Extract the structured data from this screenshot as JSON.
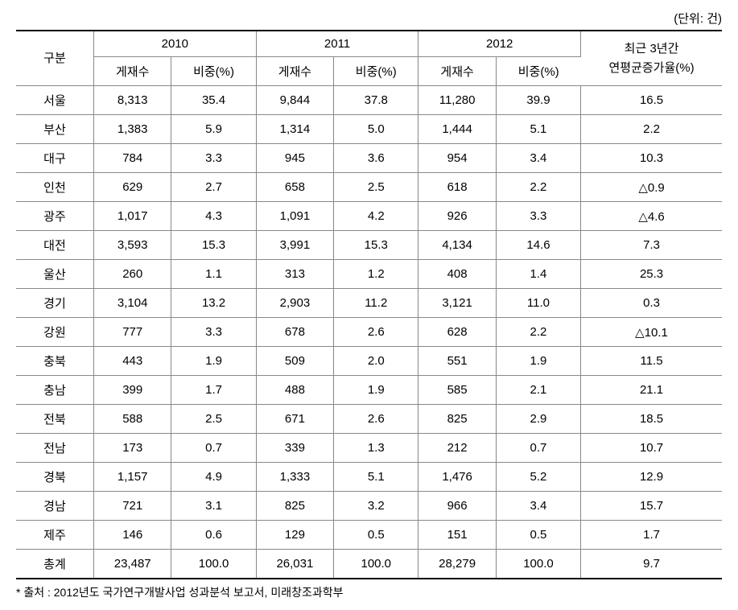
{
  "unit_label": "(단위: 건)",
  "header": {
    "category": "구분",
    "years": [
      "2010",
      "2011",
      "2012"
    ],
    "count": "게재수",
    "ratio": "비중(%)",
    "growth_top": "최근 3년간",
    "growth_bottom": "연평균증가율(%)"
  },
  "rows": [
    {
      "region": "서울",
      "y2010_cnt": "8,313",
      "y2010_pct": "35.4",
      "y2011_cnt": "9,844",
      "y2011_pct": "37.8",
      "y2012_cnt": "11,280",
      "y2012_pct": "39.9",
      "growth": "16.5"
    },
    {
      "region": "부산",
      "y2010_cnt": "1,383",
      "y2010_pct": "5.9",
      "y2011_cnt": "1,314",
      "y2011_pct": "5.0",
      "y2012_cnt": "1,444",
      "y2012_pct": "5.1",
      "growth": "2.2"
    },
    {
      "region": "대구",
      "y2010_cnt": "784",
      "y2010_pct": "3.3",
      "y2011_cnt": "945",
      "y2011_pct": "3.6",
      "y2012_cnt": "954",
      "y2012_pct": "3.4",
      "growth": "10.3"
    },
    {
      "region": "인천",
      "y2010_cnt": "629",
      "y2010_pct": "2.7",
      "y2011_cnt": "658",
      "y2011_pct": "2.5",
      "y2012_cnt": "618",
      "y2012_pct": "2.2",
      "growth": "△0.9"
    },
    {
      "region": "광주",
      "y2010_cnt": "1,017",
      "y2010_pct": "4.3",
      "y2011_cnt": "1,091",
      "y2011_pct": "4.2",
      "y2012_cnt": "926",
      "y2012_pct": "3.3",
      "growth": "△4.6"
    },
    {
      "region": "대전",
      "y2010_cnt": "3,593",
      "y2010_pct": "15.3",
      "y2011_cnt": "3,991",
      "y2011_pct": "15.3",
      "y2012_cnt": "4,134",
      "y2012_pct": "14.6",
      "growth": "7.3"
    },
    {
      "region": "울산",
      "y2010_cnt": "260",
      "y2010_pct": "1.1",
      "y2011_cnt": "313",
      "y2011_pct": "1.2",
      "y2012_cnt": "408",
      "y2012_pct": "1.4",
      "growth": "25.3"
    },
    {
      "region": "경기",
      "y2010_cnt": "3,104",
      "y2010_pct": "13.2",
      "y2011_cnt": "2,903",
      "y2011_pct": "11.2",
      "y2012_cnt": "3,121",
      "y2012_pct": "11.0",
      "growth": "0.3"
    },
    {
      "region": "강원",
      "y2010_cnt": "777",
      "y2010_pct": "3.3",
      "y2011_cnt": "678",
      "y2011_pct": "2.6",
      "y2012_cnt": "628",
      "y2012_pct": "2.2",
      "growth": "△10.1"
    },
    {
      "region": "충북",
      "y2010_cnt": "443",
      "y2010_pct": "1.9",
      "y2011_cnt": "509",
      "y2011_pct": "2.0",
      "y2012_cnt": "551",
      "y2012_pct": "1.9",
      "growth": "11.5"
    },
    {
      "region": "충남",
      "y2010_cnt": "399",
      "y2010_pct": "1.7",
      "y2011_cnt": "488",
      "y2011_pct": "1.9",
      "y2012_cnt": "585",
      "y2012_pct": "2.1",
      "growth": "21.1"
    },
    {
      "region": "전북",
      "y2010_cnt": "588",
      "y2010_pct": "2.5",
      "y2011_cnt": "671",
      "y2011_pct": "2.6",
      "y2012_cnt": "825",
      "y2012_pct": "2.9",
      "growth": "18.5"
    },
    {
      "region": "전남",
      "y2010_cnt": "173",
      "y2010_pct": "0.7",
      "y2011_cnt": "339",
      "y2011_pct": "1.3",
      "y2012_cnt": "212",
      "y2012_pct": "0.7",
      "growth": "10.7"
    },
    {
      "region": "경북",
      "y2010_cnt": "1,157",
      "y2010_pct": "4.9",
      "y2011_cnt": "1,333",
      "y2011_pct": "5.1",
      "y2012_cnt": "1,476",
      "y2012_pct": "5.2",
      "growth": "12.9"
    },
    {
      "region": "경남",
      "y2010_cnt": "721",
      "y2010_pct": "3.1",
      "y2011_cnt": "825",
      "y2011_pct": "3.2",
      "y2012_cnt": "966",
      "y2012_pct": "3.4",
      "growth": "15.7"
    },
    {
      "region": "제주",
      "y2010_cnt": "146",
      "y2010_pct": "0.6",
      "y2011_cnt": "129",
      "y2011_pct": "0.5",
      "y2012_cnt": "151",
      "y2012_pct": "0.5",
      "growth": "1.7"
    },
    {
      "region": "총계",
      "y2010_cnt": "23,487",
      "y2010_pct": "100.0",
      "y2011_cnt": "26,031",
      "y2011_pct": "100.0",
      "y2012_cnt": "28,279",
      "y2012_pct": "100.0",
      "growth": "9.7"
    }
  ],
  "source_note": "* 출처 : 2012년도 국가연구개발사업 성과분석 보고서, 미래창조과학부"
}
